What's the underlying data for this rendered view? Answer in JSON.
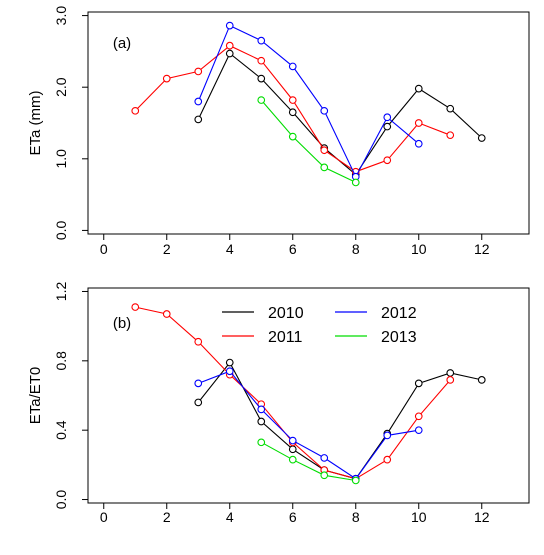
{
  "colors": {
    "2010": "#000000",
    "2011": "#ff0000",
    "2012": "#0000ff",
    "2013": "#00dd00",
    "frame": "#000000",
    "background": "#ffffff"
  },
  "legend": {
    "placement": "top-center",
    "entries": [
      {
        "label": "2010",
        "color_key": "2010"
      },
      {
        "label": "2011",
        "color_key": "2011"
      },
      {
        "label": "2012",
        "color_key": "2012"
      },
      {
        "label": "2013",
        "color_key": "2013"
      }
    ]
  },
  "chart_data": [
    {
      "type": "line",
      "panel_label": "(a)",
      "ylabel": "ETa (mm)",
      "xlabel": "",
      "xlim": [
        -0.5,
        13.5
      ],
      "ylim": [
        -0.05,
        3.05
      ],
      "xticks": [
        0,
        2,
        4,
        6,
        8,
        10,
        12
      ],
      "xtick_labels": [
        "0",
        "2",
        "4",
        "6",
        "8",
        "10",
        "12"
      ],
      "yticks": [
        0,
        1,
        2,
        3
      ],
      "ytick_labels": [
        "0.0",
        "1.0",
        "2.0",
        "3.0"
      ],
      "grid": false,
      "markers": "open-circle",
      "legend_shown": false,
      "series": [
        {
          "name": "2010",
          "color_key": "2010",
          "x": [
            3,
            4,
            5,
            6,
            7,
            8,
            9,
            10,
            11,
            12
          ],
          "y": [
            1.55,
            2.47,
            2.12,
            1.65,
            1.15,
            0.78,
            1.45,
            1.98,
            1.7,
            1.29
          ]
        },
        {
          "name": "2011",
          "color_key": "2011",
          "x": [
            1,
            2,
            3,
            4,
            5,
            6,
            7,
            8,
            9,
            10,
            11
          ],
          "y": [
            1.67,
            2.12,
            2.22,
            2.58,
            2.37,
            1.82,
            1.12,
            0.82,
            0.98,
            1.5,
            1.33
          ]
        },
        {
          "name": "2012",
          "color_key": "2012",
          "x": [
            3,
            4,
            5,
            6,
            7,
            8,
            9,
            10
          ],
          "y": [
            1.8,
            2.86,
            2.65,
            2.29,
            1.67,
            0.75,
            1.58,
            1.21
          ]
        },
        {
          "name": "2013",
          "color_key": "2013",
          "x": [
            5,
            6,
            7,
            8
          ],
          "y": [
            1.82,
            1.31,
            0.88,
            0.67
          ]
        }
      ]
    },
    {
      "type": "line",
      "panel_label": "(b)",
      "ylabel": "ETa/ET0",
      "xlabel": "",
      "xlim": [
        -0.5,
        13.5
      ],
      "ylim": [
        -0.02,
        1.22
      ],
      "xticks": [
        0,
        2,
        4,
        6,
        8,
        10,
        12
      ],
      "xtick_labels": [
        "0",
        "2",
        "4",
        "6",
        "8",
        "10",
        "12"
      ],
      "yticks": [
        0,
        0.4,
        0.8,
        1.2
      ],
      "ytick_labels": [
        "0.0",
        "0.4",
        "0.8",
        "1.2"
      ],
      "grid": false,
      "markers": "open-circle",
      "legend_shown": true,
      "series": [
        {
          "name": "2010",
          "color_key": "2010",
          "x": [
            3,
            4,
            5,
            6,
            7,
            8,
            9,
            10,
            11,
            12
          ],
          "y": [
            0.56,
            0.79,
            0.45,
            0.29,
            0.17,
            0.12,
            0.38,
            0.67,
            0.73,
            0.69
          ]
        },
        {
          "name": "2011",
          "color_key": "2011",
          "x": [
            1,
            2,
            3,
            4,
            5,
            6,
            7,
            8,
            9,
            10,
            11
          ],
          "y": [
            1.11,
            1.07,
            0.91,
            0.72,
            0.55,
            0.33,
            0.17,
            0.12,
            0.23,
            0.48,
            0.69
          ]
        },
        {
          "name": "2012",
          "color_key": "2012",
          "x": [
            3,
            4,
            5,
            6,
            7,
            8,
            9,
            10
          ],
          "y": [
            0.67,
            0.74,
            0.52,
            0.34,
            0.24,
            0.12,
            0.37,
            0.4
          ]
        },
        {
          "name": "2013",
          "color_key": "2013",
          "x": [
            5,
            6,
            7,
            8
          ],
          "y": [
            0.33,
            0.23,
            0.14,
            0.11
          ]
        }
      ]
    }
  ]
}
